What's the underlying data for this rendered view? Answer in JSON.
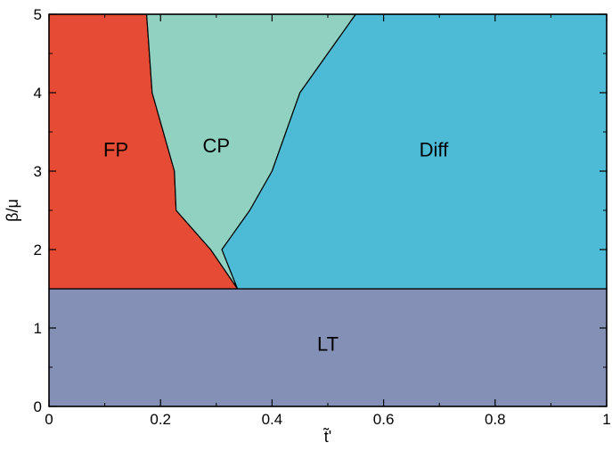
{
  "chart_data": {
    "type": "area",
    "title": "",
    "xlabel": "t̃'",
    "ylabel": "β/μ",
    "xlim": [
      0,
      1
    ],
    "ylim": [
      0,
      5
    ],
    "x_ticks": [
      0,
      0.2,
      0.4,
      0.6,
      0.8,
      1
    ],
    "y_ticks": [
      0,
      1,
      2,
      3,
      4,
      5
    ],
    "x_tick_labels": [
      "0",
      "0.2",
      "0.4",
      "0.6",
      "0.8",
      "1"
    ],
    "y_tick_labels": [
      "0",
      "1",
      "2",
      "3",
      "4",
      "5"
    ],
    "grid": false,
    "legend": "none",
    "regions": [
      {
        "name": "LT",
        "color": "#8590b6",
        "label_at": [
          0.5,
          0.8
        ],
        "boundary": [
          [
            0,
            0
          ],
          [
            1,
            0
          ],
          [
            1,
            1.5
          ],
          [
            0,
            1.5
          ]
        ]
      },
      {
        "name": "FP",
        "color": "#e64b35",
        "label_at": [
          0.12,
          3.28
        ],
        "boundary": [
          [
            0,
            1.5
          ],
          [
            0.338,
            1.5
          ],
          [
            0.29,
            2.0
          ],
          [
            0.228,
            2.5
          ],
          [
            0.225,
            3.0
          ],
          [
            0.185,
            4.0
          ],
          [
            0.175,
            5.0
          ],
          [
            0,
            5.0
          ]
        ]
      },
      {
        "name": "CP",
        "color": "#91d1c2",
        "label_at": [
          0.3,
          3.33
        ],
        "boundary": [
          [
            0.175,
            5.0
          ],
          [
            0.185,
            4.0
          ],
          [
            0.225,
            3.0
          ],
          [
            0.228,
            2.5
          ],
          [
            0.29,
            2.0
          ],
          [
            0.338,
            1.5
          ],
          [
            0.31,
            2.0
          ],
          [
            0.36,
            2.5
          ],
          [
            0.4,
            3.0
          ],
          [
            0.45,
            4.0
          ],
          [
            0.55,
            5.0
          ]
        ]
      },
      {
        "name": "Diff",
        "color": "#4dbbd5",
        "label_at": [
          0.69,
          3.28
        ],
        "boundary": [
          [
            0.338,
            1.5
          ],
          [
            1,
            1.5
          ],
          [
            1,
            5.0
          ],
          [
            0.55,
            5.0
          ],
          [
            0.45,
            4.0
          ],
          [
            0.4,
            3.0
          ],
          [
            0.36,
            2.5
          ],
          [
            0.31,
            2.0
          ]
        ]
      }
    ]
  }
}
